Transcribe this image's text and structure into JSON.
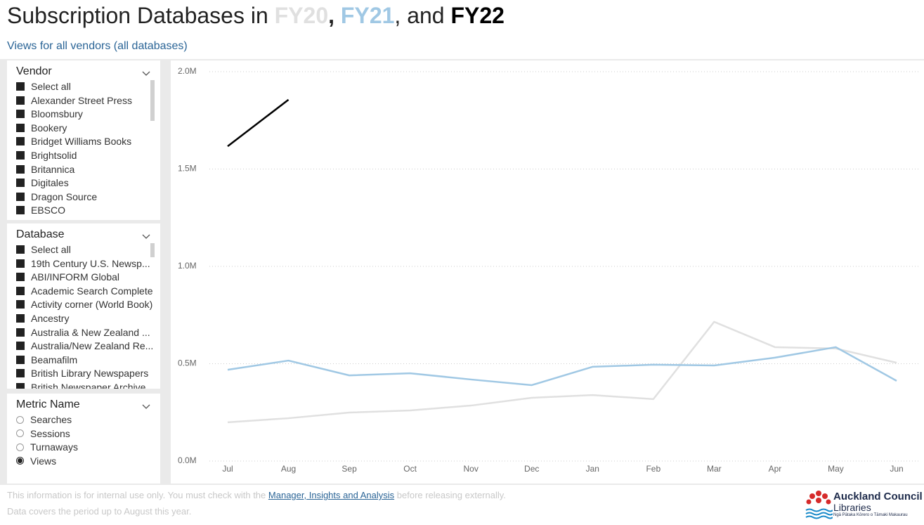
{
  "header": {
    "title_prefix": "Subscription Databases in",
    "sep1": ",",
    "sep2": ", and",
    "subtitle": "Views for all vendors (all databases)"
  },
  "slicers": [
    {
      "title": "Vendor",
      "kind": "check",
      "items": [
        "Select all",
        "Alexander Street Press",
        "Bloomsbury",
        "Bookery",
        "Bridget Williams Books",
        "Brightsolid",
        "Britannica",
        "Digitales",
        "Dragon Source",
        "EBSCO"
      ]
    },
    {
      "title": "Database",
      "kind": "check",
      "items": [
        "Select all",
        "19th Century U.S. Newsp...",
        "ABI/INFORM Global",
        "Academic Search Complete",
        "Activity corner (World Book)",
        "Ancestry",
        "Australia & New Zealand ...",
        "Australia/New Zealand Re...",
        "Beamafilm",
        "British Library Newspapers",
        "British Newspaper Archive"
      ]
    },
    {
      "title": "Metric Name",
      "kind": "radio",
      "items": [
        "Searches",
        "Sessions",
        "Turnaways",
        "Views"
      ],
      "selected": 3
    }
  ],
  "chart_data": {
    "type": "line",
    "categories": [
      "Jul",
      "Aug",
      "Sep",
      "Oct",
      "Nov",
      "Dec",
      "Jan",
      "Feb",
      "Mar",
      "Apr",
      "May",
      "Jun"
    ],
    "series": [
      {
        "name": "FY20",
        "color": "#e0e0e0",
        "values": [
          199000,
          220000,
          249000,
          260000,
          285000,
          325000,
          339000,
          318000,
          715000,
          585000,
          578000,
          505000
        ]
      },
      {
        "name": "FY21",
        "color": "#a0c8e4",
        "values": [
          469000,
          516000,
          440000,
          451000,
          419000,
          390000,
          484000,
          495000,
          491000,
          531000,
          585000,
          412000
        ]
      },
      {
        "name": "FY22",
        "color": "#000000",
        "values": [
          1617000,
          1856000,
          null,
          null,
          null,
          null,
          null,
          null,
          null,
          null,
          null,
          null
        ]
      }
    ],
    "ylim": [
      0,
      2000000
    ],
    "yticks": [
      {
        "value": 0,
        "label": "0.0M"
      },
      {
        "value": 500000,
        "label": "0.5M"
      },
      {
        "value": 1000000,
        "label": "1.0M"
      },
      {
        "value": 1500000,
        "label": "1.5M"
      },
      {
        "value": 2000000,
        "label": "2.0M"
      }
    ],
    "grid": true
  },
  "footer": {
    "note_before": "This information is for internal use only. You must check with the",
    "link": "Manager, Insights and Analysis",
    "note_after": "before releasing externally.",
    "coverage": "Data covers the period up to August this year."
  },
  "logo": {
    "name": "Auckland Council",
    "sub": "Libraries",
    "maori": "Ngā Pātaka Kōrero o Tāmaki Makaurau"
  }
}
